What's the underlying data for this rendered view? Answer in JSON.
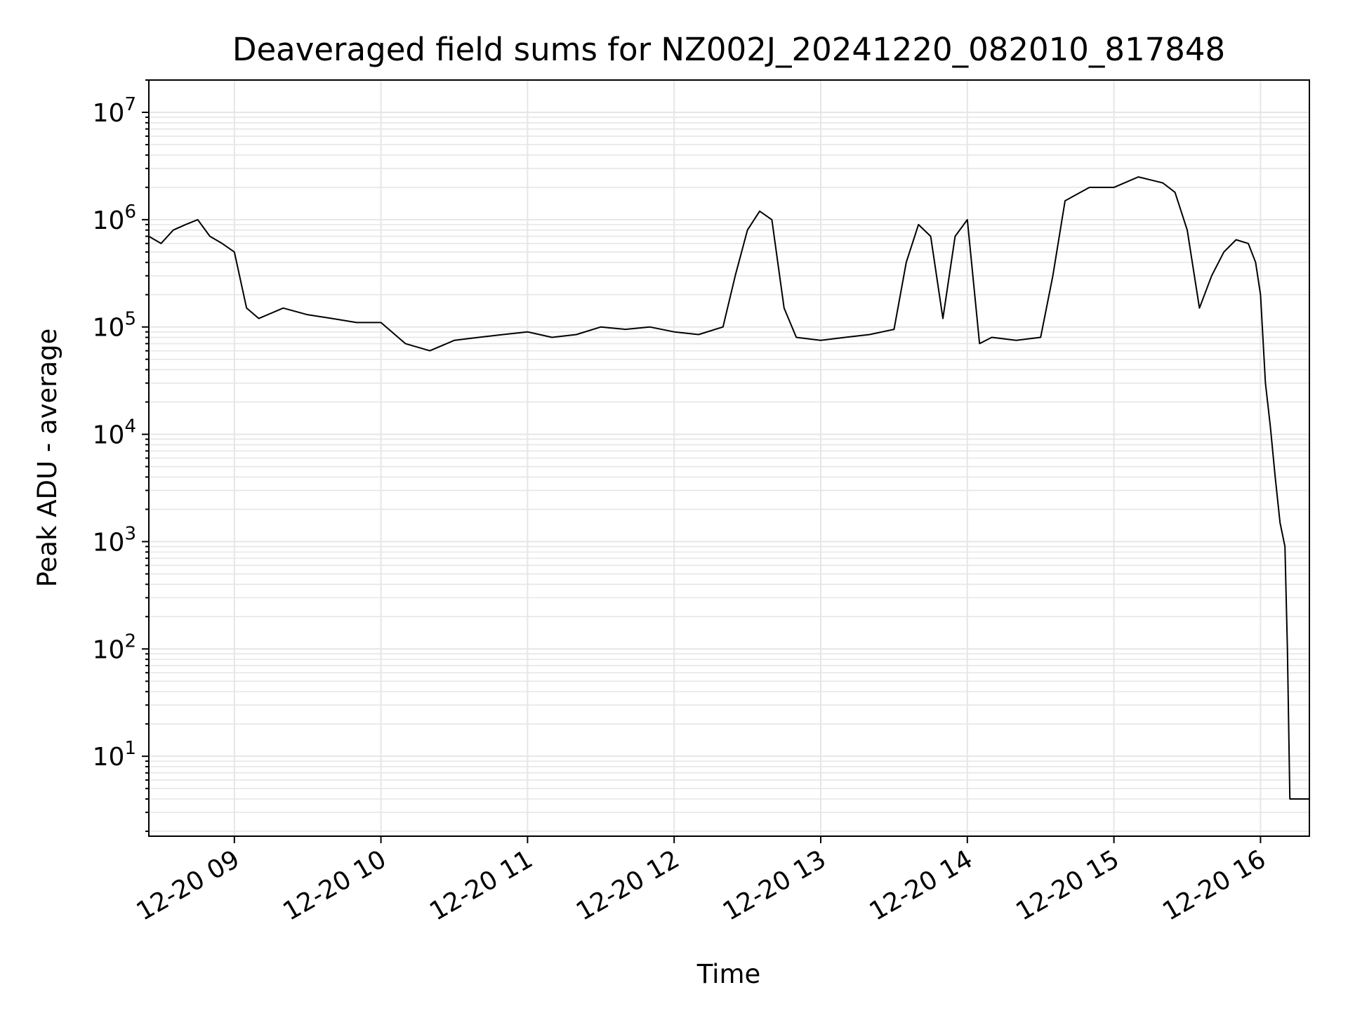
{
  "chart_data": {
    "type": "line",
    "title": "Deaveraged field sums for NZ002J_20241220_082010_817848",
    "xlabel": "Time",
    "ylabel": "Peak ADU - average",
    "yscale": "log",
    "ylim": [
      1.8,
      20000000
    ],
    "xlim": [
      "2024-12-20 08:25",
      "2024-12-20 16:20"
    ],
    "grid": true,
    "line_color": "#000000",
    "grid_color": "#e6e6e6",
    "x_ticks": [
      {
        "t": "2024-12-20 09:00",
        "label": "12-20 09"
      },
      {
        "t": "2024-12-20 10:00",
        "label": "12-20 10"
      },
      {
        "t": "2024-12-20 11:00",
        "label": "12-20 11"
      },
      {
        "t": "2024-12-20 12:00",
        "label": "12-20 12"
      },
      {
        "t": "2024-12-20 13:00",
        "label": "12-20 13"
      },
      {
        "t": "2024-12-20 14:00",
        "label": "12-20 14"
      },
      {
        "t": "2024-12-20 15:00",
        "label": "12-20 15"
      },
      {
        "t": "2024-12-20 16:00",
        "label": "12-20 16"
      }
    ],
    "y_ticks": [
      {
        "value": 10,
        "base": "10",
        "exp": "1"
      },
      {
        "value": 100,
        "base": "10",
        "exp": "2"
      },
      {
        "value": 1000,
        "base": "10",
        "exp": "3"
      },
      {
        "value": 10000,
        "base": "10",
        "exp": "4"
      },
      {
        "value": 100000,
        "base": "10",
        "exp": "5"
      },
      {
        "value": 1000000,
        "base": "10",
        "exp": "6"
      },
      {
        "value": 10000000,
        "base": "10",
        "exp": "7"
      }
    ],
    "series": [
      {
        "x": [
          "2024-12-20 08:25",
          "2024-12-20 08:30",
          "2024-12-20 08:35",
          "2024-12-20 08:40",
          "2024-12-20 08:45",
          "2024-12-20 08:50",
          "2024-12-20 08:55",
          "2024-12-20 09:00",
          "2024-12-20 09:05",
          "2024-12-20 09:10",
          "2024-12-20 09:20",
          "2024-12-20 09:30",
          "2024-12-20 09:40",
          "2024-12-20 09:50",
          "2024-12-20 10:00",
          "2024-12-20 10:10",
          "2024-12-20 10:20",
          "2024-12-20 10:30",
          "2024-12-20 10:40",
          "2024-12-20 10:50",
          "2024-12-20 11:00",
          "2024-12-20 11:10",
          "2024-12-20 11:20",
          "2024-12-20 11:30",
          "2024-12-20 11:40",
          "2024-12-20 11:50",
          "2024-12-20 12:00",
          "2024-12-20 12:10",
          "2024-12-20 12:20",
          "2024-12-20 12:25",
          "2024-12-20 12:30",
          "2024-12-20 12:35",
          "2024-12-20 12:40",
          "2024-12-20 12:45",
          "2024-12-20 12:50",
          "2024-12-20 13:00",
          "2024-12-20 13:10",
          "2024-12-20 13:20",
          "2024-12-20 13:30",
          "2024-12-20 13:35",
          "2024-12-20 13:40",
          "2024-12-20 13:45",
          "2024-12-20 13:50",
          "2024-12-20 13:55",
          "2024-12-20 14:00",
          "2024-12-20 14:05",
          "2024-12-20 14:10",
          "2024-12-20 14:20",
          "2024-12-20 14:30",
          "2024-12-20 14:35",
          "2024-12-20 14:40",
          "2024-12-20 14:50",
          "2024-12-20 15:00",
          "2024-12-20 15:10",
          "2024-12-20 15:20",
          "2024-12-20 15:25",
          "2024-12-20 15:30",
          "2024-12-20 15:35",
          "2024-12-20 15:40",
          "2024-12-20 15:45",
          "2024-12-20 15:50",
          "2024-12-20 15:55",
          "2024-12-20 15:58",
          "2024-12-20 16:00",
          "2024-12-20 16:02",
          "2024-12-20 16:04",
          "2024-12-20 16:06",
          "2024-12-20 16:08",
          "2024-12-20 16:10",
          "2024-12-20 16:11",
          "2024-12-20 16:12",
          "2024-12-20 16:20"
        ],
        "y": [
          700000,
          600000,
          800000,
          900000,
          1000000,
          700000,
          600000,
          500000,
          150000,
          120000,
          150000,
          130000,
          120000,
          110000,
          110000,
          70000,
          60000,
          75000,
          80000,
          85000,
          90000,
          80000,
          85000,
          100000,
          95000,
          100000,
          90000,
          85000,
          100000,
          300000,
          800000,
          1200000,
          1000000,
          150000,
          80000,
          75000,
          80000,
          85000,
          95000,
          400000,
          900000,
          700000,
          120000,
          700000,
          1000000,
          70000,
          80000,
          75000,
          80000,
          300000,
          1500000,
          2000000,
          2000000,
          2500000,
          2200000,
          1800000,
          800000,
          150000,
          300000,
          500000,
          650000,
          600000,
          400000,
          200000,
          30000,
          12000,
          4000,
          1500,
          900,
          100,
          4,
          4
        ]
      }
    ]
  }
}
